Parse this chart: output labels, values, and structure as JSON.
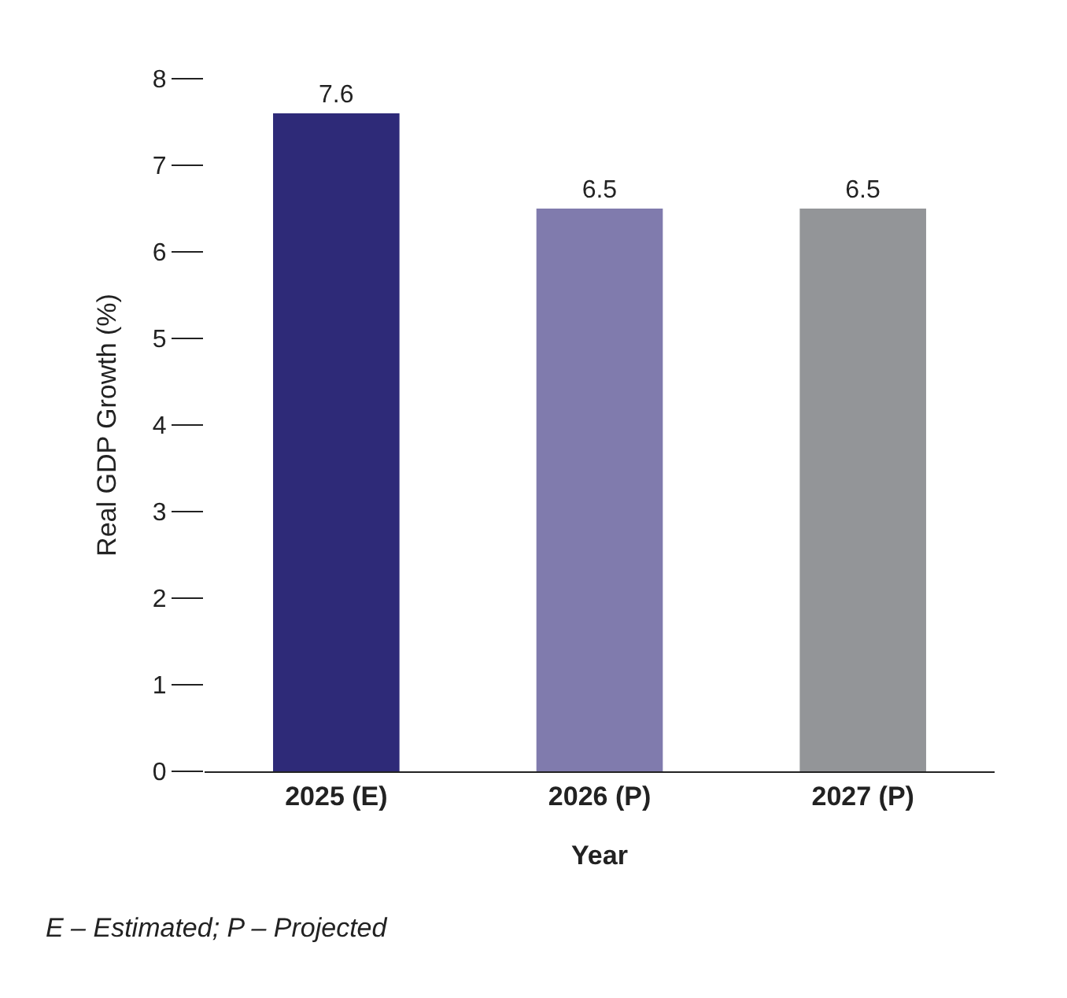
{
  "chart_data": {
    "type": "bar",
    "xlabel": "Year",
    "ylabel": "Real GDP Growth (%)",
    "categories": [
      "2025 (E)",
      "2026 (P)",
      "2027 (P)"
    ],
    "values": [
      7.6,
      6.5,
      6.5
    ],
    "colors": [
      "#2e2a78",
      "#807bad",
      "#939598"
    ],
    "ylim": [
      0,
      8
    ],
    "yticks": [
      0,
      1,
      2,
      3,
      4,
      5,
      6,
      7,
      8
    ],
    "data_labels": true,
    "grid": false,
    "annotations": [
      "E – Estimated; P – Projected"
    ]
  }
}
